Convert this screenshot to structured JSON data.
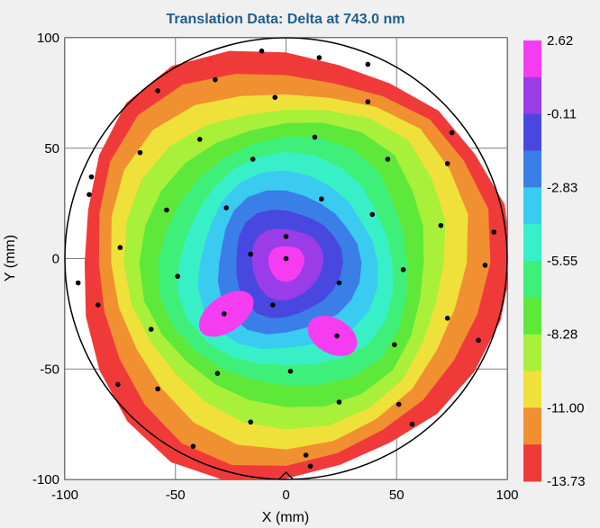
{
  "chart_data": {
    "type": "contour",
    "title": "Translation Data:  Delta at 743.0 nm",
    "xlabel": "X (mm)",
    "ylabel": "Y (mm)",
    "xlim": [
      -100,
      100
    ],
    "ylim": [
      -100,
      100
    ],
    "x_ticks": [
      "-100",
      "-50",
      "0",
      "50",
      "100"
    ],
    "y_ticks": [
      "100",
      "50",
      "0",
      "-50",
      "-100"
    ],
    "grid": true,
    "wafer_outline": "circle",
    "colorbar": {
      "labels": [
        "2.62",
        "-0.11",
        "-2.83",
        "-5.55",
        "-8.28",
        "-11.00",
        "-13.73"
      ],
      "levels": [
        2.62,
        1.26,
        -0.11,
        -1.47,
        -2.83,
        -4.19,
        -5.55,
        -6.92,
        -8.28,
        -9.64,
        -11.0,
        -12.37,
        -13.73
      ],
      "colors": [
        "#f53cf0",
        "#9a3ce8",
        "#4848e0",
        "#3a7ee8",
        "#3acbf0",
        "#38f0c8",
        "#3ef07a",
        "#5ee83a",
        "#a8f03a",
        "#f0e03a",
        "#f09030",
        "#f03a3a"
      ]
    },
    "points": [
      [
        -11,
        94
      ],
      [
        15,
        91
      ],
      [
        37,
        88
      ],
      [
        -58,
        76
      ],
      [
        -32,
        81
      ],
      [
        -5,
        73
      ],
      [
        37,
        71
      ],
      [
        -66,
        48
      ],
      [
        -39,
        54
      ],
      [
        13,
        55
      ],
      [
        75,
        57
      ],
      [
        -88,
        37
      ],
      [
        -15,
        45
      ],
      [
        46,
        45
      ],
      [
        73,
        43
      ],
      [
        -89,
        29
      ],
      [
        -54,
        22
      ],
      [
        -27,
        23
      ],
      [
        16,
        27
      ],
      [
        39,
        20
      ],
      [
        70,
        15
      ],
      [
        94,
        12
      ],
      [
        -75,
        5
      ],
      [
        0,
        10
      ],
      [
        -16,
        2
      ],
      [
        0,
        0
      ],
      [
        -49,
        -8
      ],
      [
        53,
        -5
      ],
      [
        24,
        -11
      ],
      [
        90,
        -3
      ],
      [
        -94,
        -11
      ],
      [
        -85,
        -21
      ],
      [
        -61,
        -32
      ],
      [
        -28,
        -25
      ],
      [
        -6,
        -21
      ],
      [
        73,
        -27
      ],
      [
        23,
        -35
      ],
      [
        49,
        -39
      ],
      [
        87,
        -37
      ],
      [
        -31,
        -52
      ],
      [
        2,
        -51
      ],
      [
        -76,
        -57
      ],
      [
        -58,
        -59
      ],
      [
        24,
        -65
      ],
      [
        51,
        -66
      ],
      [
        57,
        -75
      ],
      [
        -16,
        -74
      ],
      [
        -42,
        -85
      ],
      [
        9,
        -89
      ],
      [
        11,
        -94
      ]
    ]
  }
}
